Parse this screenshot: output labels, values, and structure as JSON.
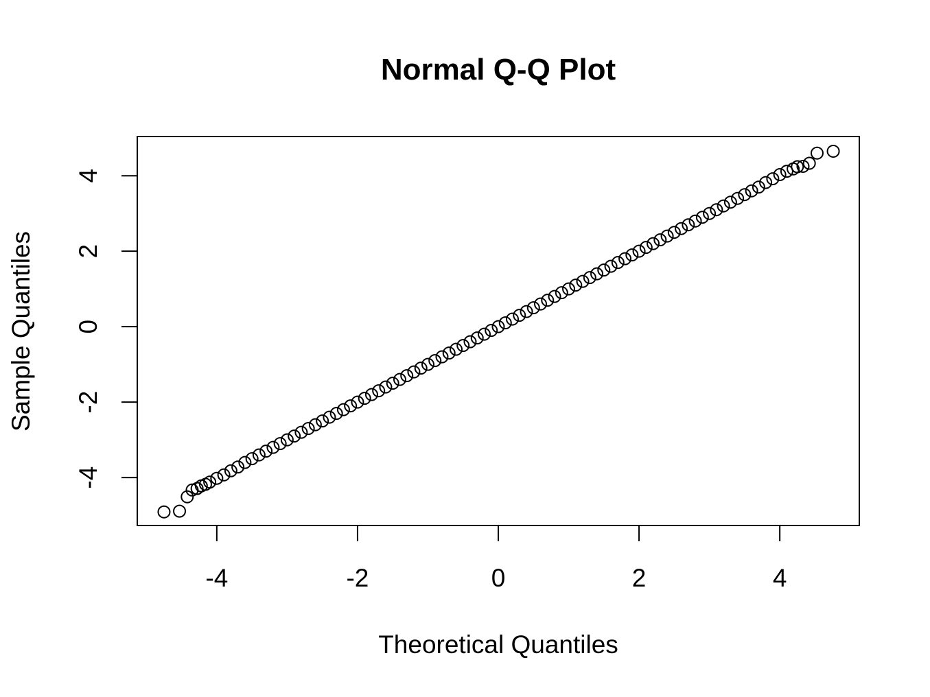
{
  "chart_data": {
    "type": "scatter",
    "title": "Normal Q-Q Plot",
    "xlabel": "Theoretical Quantiles",
    "ylabel": "Sample Quantiles",
    "x": [
      -4.75,
      -4.53,
      -4.42,
      -4.35,
      -4.28,
      -4.22,
      -4.16,
      -4.1,
      -4.0,
      -3.9,
      -3.8,
      -3.7,
      -3.6,
      -3.5,
      -3.4,
      -3.3,
      -3.2,
      -3.1,
      -3.0,
      -2.9,
      -2.8,
      -2.7,
      -2.6,
      -2.5,
      -2.4,
      -2.3,
      -2.2,
      -2.1,
      -2.0,
      -1.9,
      -1.8,
      -1.7,
      -1.6,
      -1.5,
      -1.4,
      -1.3,
      -1.2,
      -1.1,
      -1.0,
      -0.9,
      -0.8,
      -0.7,
      -0.6,
      -0.5,
      -0.4,
      -0.3,
      -0.2,
      -0.1,
      0.0,
      0.1,
      0.2,
      0.3,
      0.4,
      0.5,
      0.6,
      0.7,
      0.8,
      0.9,
      1.0,
      1.1,
      1.2,
      1.3,
      1.4,
      1.5,
      1.6,
      1.7,
      1.8,
      1.9,
      2.0,
      2.1,
      2.2,
      2.3,
      2.4,
      2.5,
      2.6,
      2.7,
      2.8,
      2.9,
      3.0,
      3.1,
      3.2,
      3.3,
      3.4,
      3.5,
      3.6,
      3.7,
      3.8,
      3.9,
      4.0,
      4.1,
      4.19,
      4.25,
      4.33,
      4.42,
      4.53,
      4.76
    ],
    "y": [
      -4.91,
      -4.89,
      -4.51,
      -4.33,
      -4.29,
      -4.22,
      -4.18,
      -4.12,
      -4.02,
      -3.93,
      -3.82,
      -3.72,
      -3.6,
      -3.5,
      -3.4,
      -3.3,
      -3.2,
      -3.1,
      -3.0,
      -2.9,
      -2.8,
      -2.7,
      -2.6,
      -2.5,
      -2.4,
      -2.3,
      -2.2,
      -2.1,
      -2.0,
      -1.9,
      -1.8,
      -1.7,
      -1.6,
      -1.5,
      -1.4,
      -1.3,
      -1.2,
      -1.1,
      -1.0,
      -0.9,
      -0.8,
      -0.7,
      -0.6,
      -0.5,
      -0.4,
      -0.3,
      -0.2,
      -0.1,
      0.0,
      0.1,
      0.2,
      0.3,
      0.4,
      0.5,
      0.6,
      0.7,
      0.8,
      0.9,
      1.0,
      1.1,
      1.2,
      1.3,
      1.4,
      1.5,
      1.6,
      1.7,
      1.8,
      1.9,
      2.0,
      2.1,
      2.2,
      2.3,
      2.4,
      2.5,
      2.6,
      2.7,
      2.8,
      2.9,
      3.0,
      3.1,
      3.2,
      3.3,
      3.4,
      3.5,
      3.6,
      3.7,
      3.82,
      3.92,
      4.03,
      4.12,
      4.18,
      4.24,
      4.25,
      4.33,
      4.6,
      4.65
    ],
    "color": "#000000",
    "xlim": [
      -5.13,
      5.13
    ],
    "ylim": [
      -5.27,
      5.04
    ],
    "xticks": [
      -4,
      -2,
      0,
      2,
      4
    ],
    "yticks": [
      -4,
      -2,
      0,
      2,
      4
    ]
  }
}
